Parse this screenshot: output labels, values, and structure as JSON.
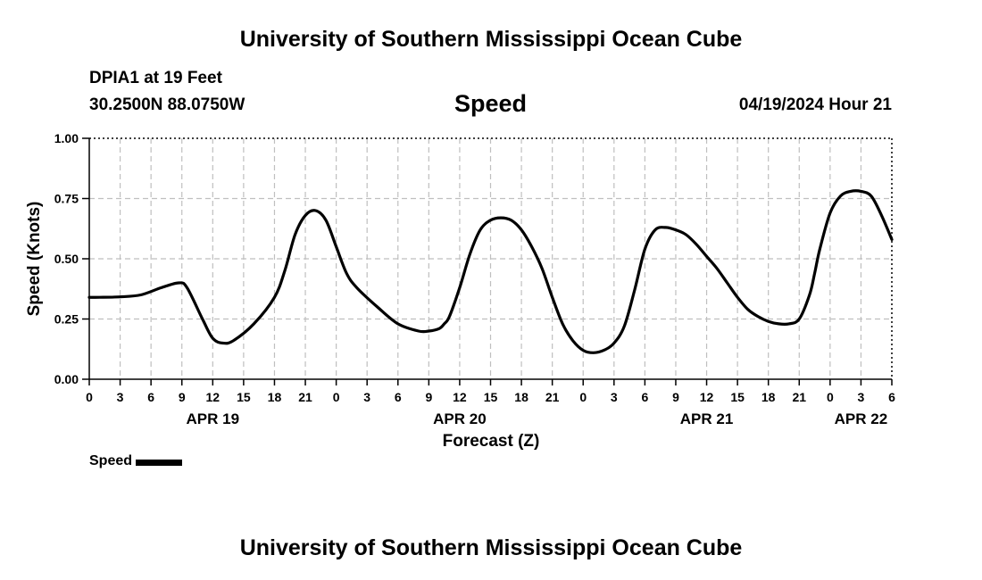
{
  "header": {
    "title_top": "University of Southern Mississippi Ocean Cube",
    "station": "DPIA1 at 19 Feet",
    "coords": "30.2500N  88.0750W",
    "datetime": "04/19/2024 Hour 21",
    "title_bottom": "University of Southern Mississippi Ocean Cube"
  },
  "legend": {
    "label": "Speed"
  },
  "colors": {
    "line": "#000000",
    "grid": "#bfbfbf"
  },
  "chart_data": {
    "type": "line",
    "title": "Speed",
    "xlabel": "Forecast (Z)",
    "ylabel": "Speed (Knots)",
    "xlim": [
      0,
      78
    ],
    "ylim": [
      0,
      1
    ],
    "yticks": [
      0,
      0.25,
      0.5,
      0.75,
      1.0
    ],
    "ytick_labels": [
      "0.00",
      "0.25",
      "0.50",
      "0.75",
      "1.00"
    ],
    "xticks": [
      0,
      3,
      6,
      9,
      12,
      15,
      18,
      21,
      24,
      27,
      30,
      33,
      36,
      39,
      42,
      45,
      48,
      51,
      54,
      57,
      60,
      63,
      66,
      69,
      72,
      75,
      78
    ],
    "xtick_labels": [
      "0",
      "3",
      "6",
      "9",
      "12",
      "15",
      "18",
      "21",
      "0",
      "3",
      "6",
      "9",
      "12",
      "15",
      "18",
      "21",
      "0",
      "3",
      "6",
      "9",
      "12",
      "15",
      "18",
      "21",
      "0",
      "3",
      "6"
    ],
    "date_labels": [
      {
        "label": "APR 19",
        "x": 12
      },
      {
        "label": "APR 20",
        "x": 36
      },
      {
        "label": "APR 21",
        "x": 60
      },
      {
        "label": "APR 22",
        "x": 75
      }
    ],
    "grid": true,
    "series": [
      {
        "name": "Speed",
        "x": [
          0,
          1,
          3,
          5,
          7,
          8.7,
          9.5,
          11,
          12,
          13,
          14,
          16,
          18,
          19,
          20,
          21,
          22,
          23,
          24,
          25,
          26,
          28,
          30,
          32,
          33,
          34,
          34.5,
          35,
          36,
          37,
          38,
          39,
          40,
          41,
          42,
          43,
          44,
          45,
          46,
          47,
          48,
          49,
          50,
          51,
          52,
          53,
          54,
          55,
          56,
          57,
          58,
          59,
          60,
          61,
          62,
          63,
          64,
          65,
          66,
          67,
          68,
          69,
          70,
          70.5,
          71,
          72,
          73,
          74,
          75,
          76,
          77,
          78
        ],
        "values": [
          0.34,
          0.34,
          0.342,
          0.35,
          0.38,
          0.4,
          0.38,
          0.25,
          0.17,
          0.15,
          0.16,
          0.23,
          0.34,
          0.45,
          0.6,
          0.68,
          0.7,
          0.66,
          0.55,
          0.44,
          0.38,
          0.3,
          0.23,
          0.2,
          0.2,
          0.21,
          0.23,
          0.26,
          0.38,
          0.52,
          0.62,
          0.66,
          0.67,
          0.66,
          0.62,
          0.55,
          0.46,
          0.34,
          0.23,
          0.16,
          0.12,
          0.11,
          0.12,
          0.15,
          0.22,
          0.37,
          0.54,
          0.62,
          0.63,
          0.62,
          0.6,
          0.56,
          0.51,
          0.46,
          0.4,
          0.34,
          0.29,
          0.26,
          0.24,
          0.23,
          0.23,
          0.25,
          0.35,
          0.44,
          0.54,
          0.69,
          0.76,
          0.78,
          0.78,
          0.76,
          0.68,
          0.58
        ]
      }
    ]
  }
}
